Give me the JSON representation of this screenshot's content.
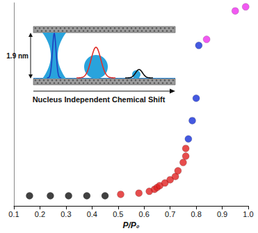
{
  "chart_data": {
    "type": "scatter",
    "x_label": "P/P₀",
    "xlim": [
      0.1,
      1.0
    ],
    "xticks": [
      0.1,
      0.2,
      0.3,
      0.4,
      0.5,
      0.6,
      0.7,
      0.8,
      0.9,
      {
        "value": 1.0,
        "label": "1.0"
      }
    ],
    "ylim": [
      0,
      100
    ],
    "tick_labels": "x",
    "grid": false,
    "marker": "circle",
    "annotations": [
      "1.9 nm",
      "Nucleus Independent Chemical Shift"
    ],
    "series": [
      {
        "color": "#111111",
        "x": [
          0.16,
          0.24,
          0.31,
          0.38,
          0.45
        ],
        "values": [
          5,
          5,
          5,
          5,
          5
        ]
      },
      {
        "color": "#e02020",
        "x": [
          0.51,
          0.58,
          0.62,
          0.64,
          0.65,
          0.66,
          0.68,
          0.7,
          0.72,
          0.73,
          0.75,
          0.76,
          0.76
        ],
        "values": [
          5.7,
          6.3,
          7.2,
          8.2,
          9.1,
          10,
          11.3,
          12.9,
          14.5,
          17.3,
          21.4,
          24.5,
          28.3
        ]
      },
      {
        "color": "#1530d8",
        "x": [
          0.77,
          0.785,
          0.8,
          0.81
        ],
        "values": [
          33,
          42,
          53,
          79
        ]
      },
      {
        "color": "#ee30ee",
        "x": [
          0.84,
          0.95,
          0.99
        ],
        "values": [
          82,
          96,
          98
        ]
      }
    ]
  }
}
